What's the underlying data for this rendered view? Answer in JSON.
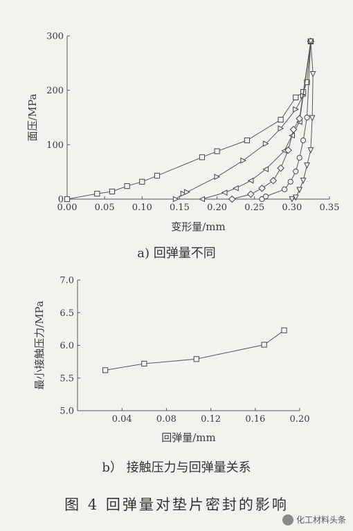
{
  "figure_caption": "图 4   回弹量对垫片密封的影响",
  "watermark": "化工材料头条",
  "chart_data": [
    {
      "type": "line",
      "caption": "a)  回弹量不同",
      "xlabel": "变形量/mm",
      "ylabel": "面压/MPa",
      "xlim": [
        0,
        0.35
      ],
      "ylim": [
        0,
        300
      ],
      "xticks": [
        "0.00",
        "0.05",
        "0.10",
        "0.15",
        "0.20",
        "0.25",
        "0.30",
        "0.35"
      ],
      "yticks": [
        "0",
        "100",
        "200",
        "300"
      ],
      "grid": false,
      "series": [
        {
          "marker": "square",
          "points": [
            [
              0.0,
              0
            ],
            [
              0.04,
              10
            ],
            [
              0.06,
              14
            ],
            [
              0.08,
              24
            ],
            [
              0.1,
              32
            ],
            [
              0.12,
              43
            ],
            [
              0.18,
              77
            ],
            [
              0.2,
              88
            ],
            [
              0.24,
              108
            ],
            [
              0.285,
              146
            ],
            [
              0.305,
              187
            ],
            [
              0.315,
              197
            ],
            [
              0.32,
              215
            ],
            [
              0.325,
              290
            ]
          ]
        },
        {
          "marker": "triangle-right",
          "points": [
            [
              0.145,
              0
            ],
            [
              0.155,
              10
            ],
            [
              0.16,
              13
            ],
            [
              0.2,
              41
            ],
            [
              0.235,
              71
            ],
            [
              0.265,
              102
            ],
            [
              0.285,
              130
            ],
            [
              0.305,
              165
            ],
            [
              0.315,
              190
            ],
            [
              0.325,
              290
            ]
          ]
        },
        {
          "marker": "triangle-left",
          "points": [
            [
              0.18,
              0
            ],
            [
              0.21,
              12
            ],
            [
              0.225,
              20
            ],
            [
              0.245,
              34
            ],
            [
              0.265,
              55
            ],
            [
              0.29,
              89
            ],
            [
              0.3,
              117
            ],
            [
              0.31,
              142
            ],
            [
              0.325,
              290
            ]
          ]
        },
        {
          "marker": "diamond",
          "points": [
            [
              0.22,
              0
            ],
            [
              0.245,
              9
            ],
            [
              0.26,
              20
            ],
            [
              0.275,
              34
            ],
            [
              0.285,
              57
            ],
            [
              0.295,
              90
            ],
            [
              0.302,
              128
            ],
            [
              0.31,
              148
            ],
            [
              0.325,
              290
            ]
          ]
        },
        {
          "marker": "circle",
          "points": [
            [
              0.26,
              0
            ],
            [
              0.265,
              5
            ],
            [
              0.29,
              18
            ],
            [
              0.298,
              32
            ],
            [
              0.305,
              51
            ],
            [
              0.31,
              76
            ],
            [
              0.315,
              108
            ],
            [
              0.32,
              150
            ],
            [
              0.325,
              290
            ]
          ]
        },
        {
          "marker": "triangle-down",
          "points": [
            [
              0.3,
              0
            ],
            [
              0.305,
              3
            ],
            [
              0.31,
              17
            ],
            [
              0.315,
              34
            ],
            [
              0.32,
              62
            ],
            [
              0.325,
              90
            ],
            [
              0.327,
              149
            ],
            [
              0.328,
              230
            ],
            [
              0.325,
              290
            ]
          ]
        }
      ]
    },
    {
      "type": "line",
      "caption": "b）  接触压力与回弹量关系",
      "xlabel": "回弹量/mm",
      "ylabel": "最小接触压力/MPa",
      "xlim": [
        0.0,
        0.2
      ],
      "ylim": [
        5.0,
        7.0
      ],
      "xticks": [
        "0.04",
        "0.08",
        "0.12",
        "0.16",
        "0.20"
      ],
      "yticks": [
        "5.0",
        "5.5",
        "6.0",
        "6.5",
        "7.0"
      ],
      "grid": false,
      "series": [
        {
          "marker": "square",
          "x": [
            0.025,
            0.06,
            0.107,
            0.168,
            0.186
          ],
          "values": [
            5.62,
            5.72,
            5.79,
            6.01,
            6.23
          ]
        }
      ]
    }
  ]
}
